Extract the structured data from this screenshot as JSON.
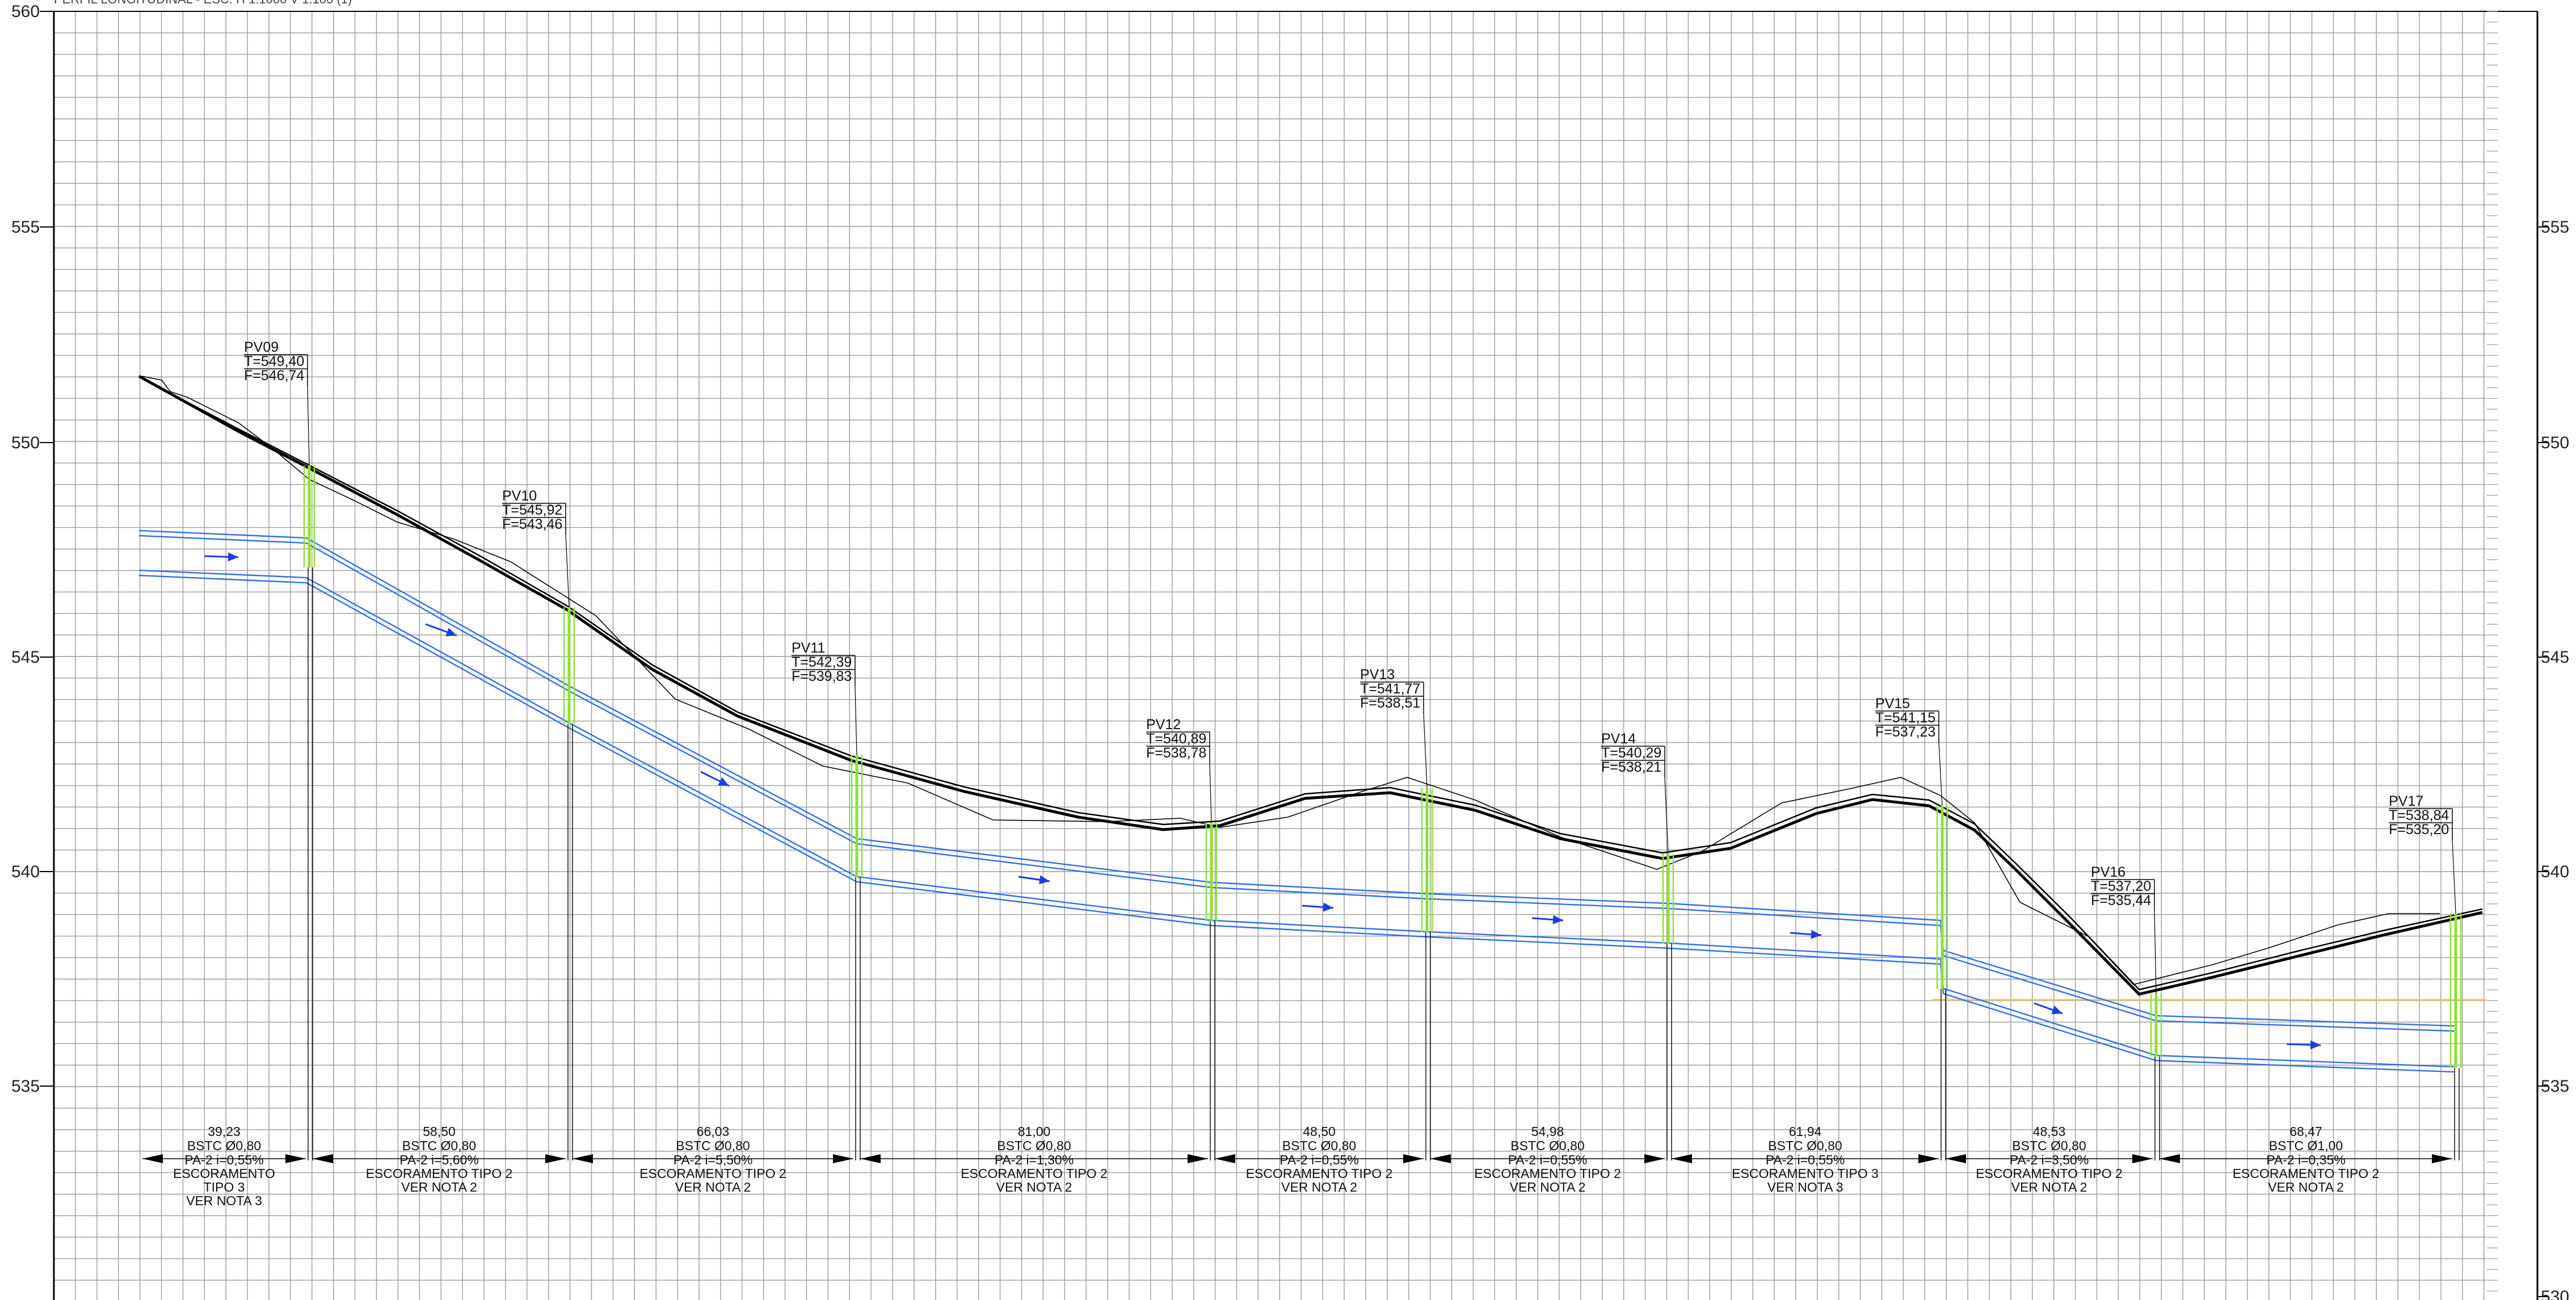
{
  "header": {
    "text": "PERFIL LONGITUDINAL - ESC. H 1:1000 V 1:100 (1)"
  },
  "elevation_axis": {
    "labels_left": [
      "560",
      "555",
      "550",
      "545",
      "540",
      "535"
    ],
    "labels_right": [
      "555",
      "550",
      "545",
      "540",
      "535",
      "530"
    ]
  },
  "colors": {
    "grid": "#9a9a9a",
    "pipe": "#2f6fe8",
    "flow_arrow": "#1a3fe0",
    "manhole": "#8ee03a",
    "terrain": "#000000",
    "dimension": "#000000",
    "reference_line": "#f2c46a"
  },
  "manholes": [
    {
      "id": "PV09",
      "tampa": "T=549,40",
      "fundo": "F=546,74"
    },
    {
      "id": "PV10",
      "tampa": "T=545,92",
      "fundo": "F=543,46"
    },
    {
      "id": "PV11",
      "tampa": "T=542,39",
      "fundo": "F=539,83"
    },
    {
      "id": "PV12",
      "tampa": "T=540,89",
      "fundo": "F=538,78"
    },
    {
      "id": "PV13",
      "tampa": "T=541,77",
      "fundo": "F=538,51"
    },
    {
      "id": "PV14",
      "tampa": "T=540,29",
      "fundo": "F=538,21"
    },
    {
      "id": "PV15",
      "tampa": "T=541,15",
      "fundo": "F=537,23"
    },
    {
      "id": "PV16",
      "tampa": "T=537,20",
      "fundo": "F=535,44"
    },
    {
      "id": "PV17",
      "tampa": "T=538,84",
      "fundo": "F=535,20"
    }
  ],
  "segments": [
    {
      "length": "39,23",
      "pipe": "BSTC Ø0,80",
      "slope": "PA-2  i=0,55%",
      "shoring": [
        "ESCORAMENTO",
        "TIPO 3"
      ],
      "note": "VER NOTA 3"
    },
    {
      "length": "58,50",
      "pipe": "BSTC Ø0,80",
      "slope": "PA-2  i=5,60%",
      "shoring": [
        "ESCORAMENTO TIPO 2"
      ],
      "note": "VER NOTA 2"
    },
    {
      "length": "66,03",
      "pipe": "BSTC Ø0,80",
      "slope": "PA-2  i=5,50%",
      "shoring": [
        "ESCORAMENTO TIPO 2"
      ],
      "note": "VER NOTA 2"
    },
    {
      "length": "81,00",
      "pipe": "BSTC Ø0,80",
      "slope": "PA-2  i=1,30%",
      "shoring": [
        "ESCORAMENTO TIPO 2"
      ],
      "note": "VER NOTA 2"
    },
    {
      "length": "48,50",
      "pipe": "BSTC Ø0,80",
      "slope": "PA-2  i=0,55%",
      "shoring": [
        "ESCORAMENTO TIPO 2"
      ],
      "note": "VER NOTA 2"
    },
    {
      "length": "54,98",
      "pipe": "BSTC Ø0,80",
      "slope": "PA-2  i=0,55%",
      "shoring": [
        "ESCORAMENTO TIPO 2"
      ],
      "note": "VER NOTA 2"
    },
    {
      "length": "61,94",
      "pipe": "BSTC Ø0,80",
      "slope": "PA-2  i=0,55%",
      "shoring": [
        "ESCORAMENTO TIPO 3"
      ],
      "note": "VER NOTA 3"
    },
    {
      "length": "48,53",
      "pipe": "BSTC Ø0,80",
      "slope": "PA-2  i=3,50%",
      "shoring": [
        "ESCORAMENTO TIPO 2"
      ],
      "note": "VER NOTA 2"
    },
    {
      "length": "68,47",
      "pipe": "BSTC Ø1,00",
      "slope": "PA-2  i=0,35%",
      "shoring": [
        "ESCORAMENTO TIPO 2"
      ],
      "note": "VER NOTA 2"
    }
  ]
}
